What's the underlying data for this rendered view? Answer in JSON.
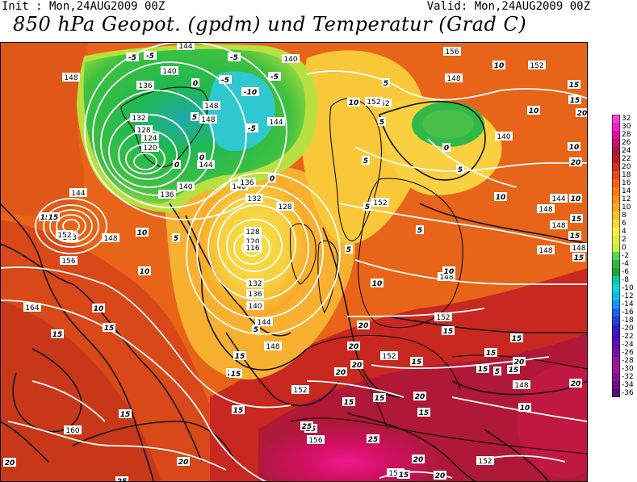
{
  "header": {
    "init": "Init : Mon,24AUG2009 00Z",
    "valid": "Valid: Mon,24AUG2009 00Z",
    "title": "850 hPa Geopot. (gpdm) und Temperatur (Grad C)"
  },
  "colorbar": {
    "labels": [
      "32",
      "30",
      "28",
      "26",
      "24",
      "22",
      "20",
      "18",
      "16",
      "14",
      "12",
      "10",
      "8",
      "6",
      "4",
      "2",
      "0",
      "-2",
      "-4",
      "-6",
      "-8",
      "-10",
      "-12",
      "-14",
      "-16",
      "-18",
      "-20",
      "-22",
      "-24",
      "-26",
      "-28",
      "-30",
      "-32",
      "-34",
      "-36"
    ],
    "colors": [
      "#ff3fd8",
      "#f020c8",
      "#e010a0",
      "#c81070",
      "#a81848",
      "#c02020",
      "#d83020",
      "#e84818",
      "#f06018",
      "#f87818",
      "#f89020",
      "#f8a828",
      "#f8c030",
      "#f8d838",
      "#f8f040",
      "#e0f040",
      "#c8f040",
      "#60d060",
      "#30b848",
      "#20a040",
      "#10c8a8",
      "#10d8d8",
      "#10b8f0",
      "#1890f0",
      "#2060f0",
      "#2040d8",
      "#3020c8",
      "#4810b8",
      "#6010b0",
      "#7810a8",
      "#9018a0",
      "#a01898",
      "#8a1090",
      "#6a1080",
      "#501070"
    ]
  },
  "map_labels": {
    "geopotential": [
      {
        "text": "148"
      },
      {
        "text": "144"
      },
      {
        "text": "140"
      },
      {
        "text": "136"
      },
      {
        "text": "132"
      },
      {
        "text": "128"
      },
      {
        "text": "124"
      },
      {
        "text": "120"
      },
      {
        "text": "136"
      },
      {
        "text": "140"
      },
      {
        "text": "144"
      },
      {
        "text": "148"
      },
      {
        "text": "148"
      },
      {
        "text": "140"
      },
      {
        "text": "144"
      },
      {
        "text": "140"
      },
      {
        "text": "128"
      },
      {
        "text": "152"
      },
      {
        "text": "156"
      },
      {
        "text": "148"
      },
      {
        "text": "164"
      },
      {
        "text": "160"
      },
      {
        "text": "136"
      },
      {
        "text": "132"
      },
      {
        "text": "124"
      },
      {
        "text": "120"
      },
      {
        "text": "116"
      },
      {
        "text": "128"
      },
      {
        "text": "132"
      },
      {
        "text": "136"
      },
      {
        "text": "140"
      },
      {
        "text": "144"
      },
      {
        "text": "148"
      },
      {
        "text": "152"
      },
      {
        "text": "156"
      },
      {
        "text": "148"
      },
      {
        "text": "152"
      },
      {
        "text": "152"
      },
      {
        "text": "156"
      },
      {
        "text": "148"
      },
      {
        "text": "144"
      },
      {
        "text": "152"
      },
      {
        "text": "148"
      },
      {
        "text": "140"
      },
      {
        "text": "144"
      },
      {
        "text": "148"
      },
      {
        "text": "148"
      },
      {
        "text": "148"
      },
      {
        "text": "148"
      },
      {
        "text": "152"
      },
      {
        "text": "152"
      },
      {
        "text": "152"
      },
      {
        "text": "148"
      },
      {
        "text": "152"
      },
      {
        "text": "152"
      }
    ],
    "temperature": [
      {
        "text": "-5"
      },
      {
        "text": "-5"
      },
      {
        "text": "-5"
      },
      {
        "text": "-5"
      },
      {
        "text": "-5"
      },
      {
        "text": "-10"
      },
      {
        "text": "-5"
      },
      {
        "text": "0"
      },
      {
        "text": "5"
      },
      {
        "text": "0"
      },
      {
        "text": "0"
      },
      {
        "text": "15"
      },
      {
        "text": "15"
      },
      {
        "text": "10"
      },
      {
        "text": "5"
      },
      {
        "text": "10"
      },
      {
        "text": "5"
      },
      {
        "text": "5"
      },
      {
        "text": "0"
      },
      {
        "text": "10"
      },
      {
        "text": "5"
      },
      {
        "text": "10"
      },
      {
        "text": "15"
      },
      {
        "text": "15"
      },
      {
        "text": "10"
      },
      {
        "text": "10"
      },
      {
        "text": "15"
      },
      {
        "text": "15"
      },
      {
        "text": "15"
      },
      {
        "text": "20"
      },
      {
        "text": "10"
      },
      {
        "text": "10"
      },
      {
        "text": "5"
      },
      {
        "text": "0"
      },
      {
        "text": "5"
      },
      {
        "text": "5"
      },
      {
        "text": "5"
      },
      {
        "text": "5"
      },
      {
        "text": "10"
      },
      {
        "text": "10"
      },
      {
        "text": "15"
      },
      {
        "text": "15"
      },
      {
        "text": "15"
      },
      {
        "text": "20"
      },
      {
        "text": "20"
      },
      {
        "text": "20"
      },
      {
        "text": "20"
      },
      {
        "text": "20"
      },
      {
        "text": "20"
      },
      {
        "text": "15"
      },
      {
        "text": "15"
      },
      {
        "text": "15"
      },
      {
        "text": "15"
      },
      {
        "text": "20"
      },
      {
        "text": "15"
      },
      {
        "text": "15"
      },
      {
        "text": "20"
      },
      {
        "text": "20"
      },
      {
        "text": "25"
      },
      {
        "text": "25"
      },
      {
        "text": "25"
      },
      {
        "text": "25"
      },
      {
        "text": "20"
      },
      {
        "text": "15"
      },
      {
        "text": "15"
      },
      {
        "text": "15"
      },
      {
        "text": "15"
      },
      {
        "text": "5"
      },
      {
        "text": "10"
      },
      {
        "text": "20"
      },
      {
        "text": "20"
      },
      {
        "text": "10"
      },
      {
        "text": "15"
      },
      {
        "text": "15"
      },
      {
        "text": "15"
      },
      {
        "text": "20"
      }
    ]
  }
}
